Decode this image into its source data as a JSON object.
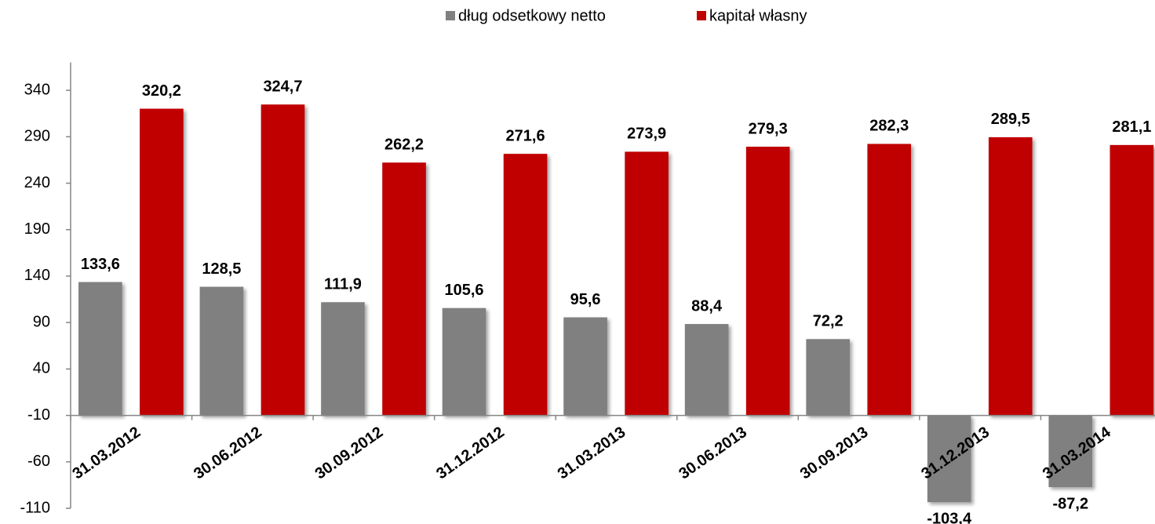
{
  "chart_data": {
    "type": "bar",
    "categories": [
      "31.03.2012",
      "30.06.2012",
      "30.09.2012",
      "31.12.2012",
      "31.03.2013",
      "30.06.2013",
      "30.09.2013",
      "31.12.2013",
      "31.03.2014"
    ],
    "series": [
      {
        "name": "dług odsetkowy netto",
        "color": "#808080",
        "values": [
          133.6,
          128.5,
          111.9,
          105.6,
          95.6,
          88.4,
          72.2,
          -103.4,
          -87.2
        ],
        "value_labels": [
          "133,6",
          "128,5",
          "111,9",
          "105,6",
          "95,6",
          "88,4",
          "72,2",
          "-103,4",
          "-87,2"
        ]
      },
      {
        "name": "kapitał własny",
        "color": "#c00000",
        "values": [
          320.2,
          324.7,
          262.2,
          271.6,
          273.9,
          279.3,
          282.3,
          289.5,
          281.1
        ],
        "value_labels": [
          "320,2",
          "324,7",
          "262,2",
          "271,6",
          "273,9",
          "279,3",
          "282,3",
          "289,5",
          "281,1"
        ]
      }
    ],
    "ylim": [
      -110,
      370
    ],
    "yticks": [
      -110,
      -60,
      -10,
      40,
      90,
      140,
      190,
      240,
      290,
      340
    ],
    "x_axis_at": -10,
    "legend": "top"
  }
}
